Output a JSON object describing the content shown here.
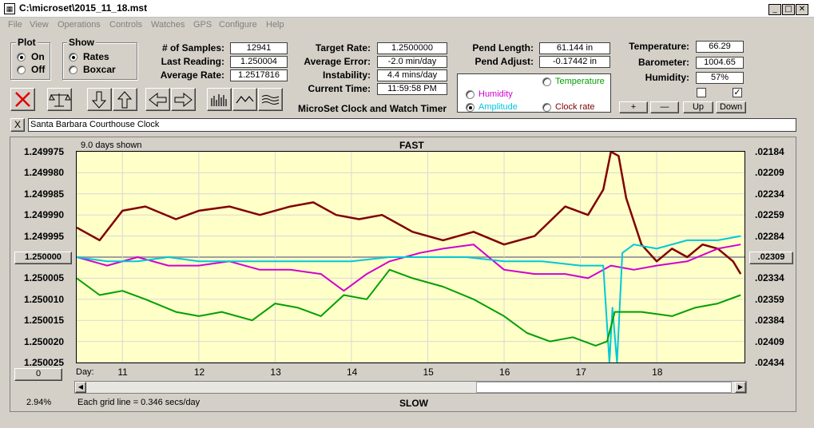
{
  "window": {
    "title": "C:\\microset\\2015_11_18.mst"
  },
  "menu": [
    "File",
    "View",
    "Operations",
    "Controls",
    "Watches",
    "GPS",
    "Configure",
    "Help"
  ],
  "plot_group": {
    "title": "Plot",
    "on": "On",
    "off": "Off",
    "selected": "On"
  },
  "show_group": {
    "title": "Show",
    "rates": "Rates",
    "boxcar": "Boxcar",
    "selected": "Rates"
  },
  "stats": {
    "samples_label": "# of Samples:",
    "samples_value": "12941",
    "last_label": "Last Reading:",
    "last_value": "1.250004",
    "avg_label": "Average Rate:",
    "avg_value": "1.2517816"
  },
  "rates": {
    "target_label": "Target Rate:",
    "target_value": "1.2500000",
    "error_label": "Average Error:",
    "error_value": "-2.0 min/day",
    "instab_label": "Instability:",
    "instab_value": "4.4 mins/day",
    "time_label": "Current Time:",
    "time_value": "11:59:58 PM"
  },
  "app_name": "MicroSet Clock and Watch Timer",
  "pendulum": {
    "length_label": "Pend Length:",
    "length_value": "61.144 in",
    "adjust_label": "Pend Adjust:",
    "adjust_value": "-0.17442 in"
  },
  "overlay": {
    "temperature": "Temperature",
    "humidity": "Humidity",
    "amplitude": "Amplitude",
    "clock_rate": "Clock rate",
    "selected": "Amplitude",
    "colors": {
      "temperature": "#00a000",
      "humidity": "#d000d0",
      "amplitude": "#00c8d8",
      "rate": "#800000"
    }
  },
  "environment": {
    "temp_label": "Temperature:",
    "temp_value": "66.29",
    "baro_label": "Barometer:",
    "baro_value": "1004.65",
    "hum_label": "Humidity:",
    "hum_value": "57%",
    "check1": false,
    "check2": true
  },
  "adjust_buttons": {
    "plus": "+",
    "minus": "—",
    "up": "Up",
    "down": "Down"
  },
  "toolbar_icons": [
    "stop-icon",
    "balance-icon",
    "arrow-down-icon",
    "arrow-up-icon",
    "arrow-left-icon",
    "arrow-right-icon",
    "bars-icon",
    "wave-icon",
    "lines-icon"
  ],
  "clock_name_close": "X",
  "clock_name": "Santa Barbara Courthouse Clock",
  "chart": {
    "days_shown": "9.0 days shown",
    "top_label": "FAST",
    "bottom_label": "SLOW",
    "day_label": "Day:",
    "left_center_button": "1.250000",
    "right_center_button": ".02309",
    "zero_button": "0",
    "percent": "2.94%",
    "grid_note": "Each grid line = 0.346 secs/day"
  },
  "chart_data": {
    "type": "line",
    "x_range": [
      10.4,
      19.15
    ],
    "x_ticks": [
      11,
      12,
      13,
      14,
      15,
      16,
      17,
      18
    ],
    "y_left_ticks": [
      "1.249975",
      "1.249980",
      "1.249985",
      "1.249990",
      "1.249995",
      "1.250000",
      "1.250005",
      "1.250010",
      "1.250015",
      "1.250020",
      "1.250025"
    ],
    "y_left_range": [
      1.250025,
      1.249975
    ],
    "y_right_ticks": [
      ".02184",
      ".02209",
      ".02234",
      ".02259",
      ".02284",
      ".02309",
      ".02334",
      ".02359",
      ".02384",
      ".02409",
      ".02434"
    ],
    "series": [
      {
        "key": "rate",
        "color": "#800000",
        "x": [
          10.4,
          10.7,
          11.0,
          11.3,
          11.7,
          12.0,
          12.4,
          12.8,
          13.2,
          13.5,
          13.8,
          14.1,
          14.4,
          14.8,
          15.2,
          15.6,
          16.0,
          16.4,
          16.8,
          17.1,
          17.3,
          17.4,
          17.5,
          17.6,
          17.8,
          18.0,
          18.2,
          18.4,
          18.6,
          18.8,
          19.0,
          19.1
        ],
        "y": [
          1.249993,
          1.249996,
          1.249989,
          1.249988,
          1.249991,
          1.249989,
          1.249988,
          1.24999,
          1.249988,
          1.249987,
          1.24999,
          1.249991,
          1.24999,
          1.249994,
          1.249996,
          1.249994,
          1.249997,
          1.249995,
          1.249988,
          1.24999,
          1.249984,
          1.249975,
          1.249976,
          1.249986,
          1.249997,
          1.250001,
          1.249998,
          1.25,
          1.249997,
          1.249998,
          1.250001,
          1.250004
        ]
      },
      {
        "key": "humidity",
        "color": "#d000d0",
        "x": [
          10.4,
          10.8,
          11.2,
          11.6,
          12.0,
          12.4,
          12.8,
          13.2,
          13.6,
          13.9,
          14.2,
          14.5,
          14.9,
          15.2,
          15.6,
          16.0,
          16.4,
          16.8,
          17.1,
          17.4,
          17.7,
          18.0,
          18.4,
          18.8,
          19.1
        ],
        "y": [
          1.25,
          1.250002,
          1.25,
          1.250002,
          1.250002,
          1.250001,
          1.250003,
          1.250003,
          1.250004,
          1.250008,
          1.250004,
          1.250001,
          1.249999,
          1.249998,
          1.249997,
          1.250003,
          1.250004,
          1.250004,
          1.250005,
          1.250002,
          1.250003,
          1.250002,
          1.250001,
          1.249998,
          1.249997
        ]
      },
      {
        "key": "amplitude",
        "color": "#00c8d8",
        "x": [
          10.4,
          10.8,
          11.2,
          11.6,
          12.0,
          12.5,
          13.0,
          13.5,
          14.0,
          14.5,
          15.0,
          15.5,
          16.0,
          16.5,
          17.0,
          17.3,
          17.38,
          17.42,
          17.48,
          17.55,
          17.7,
          18.0,
          18.4,
          18.8,
          19.1
        ],
        "y": [
          1.25,
          1.250001,
          1.250001,
          1.25,
          1.250001,
          1.250001,
          1.250001,
          1.250001,
          1.250001,
          1.25,
          1.25,
          1.25,
          1.250001,
          1.250001,
          1.250002,
          1.250002,
          1.250025,
          1.250012,
          1.250025,
          1.249999,
          1.249997,
          1.249998,
          1.249996,
          1.249996,
          1.249995
        ]
      },
      {
        "key": "temperature",
        "color": "#00a000",
        "x": [
          10.4,
          10.7,
          11.0,
          11.3,
          11.7,
          12.0,
          12.3,
          12.7,
          13.0,
          13.3,
          13.6,
          13.9,
          14.2,
          14.5,
          14.8,
          15.2,
          15.6,
          16.0,
          16.3,
          16.6,
          16.9,
          17.2,
          17.35,
          17.45,
          17.8,
          18.2,
          18.5,
          18.8,
          19.1
        ],
        "y": [
          1.250005,
          1.250009,
          1.250008,
          1.25001,
          1.250013,
          1.250014,
          1.250013,
          1.250015,
          1.250011,
          1.250012,
          1.250014,
          1.250009,
          1.25001,
          1.250003,
          1.250005,
          1.250007,
          1.25001,
          1.250014,
          1.250018,
          1.25002,
          1.250019,
          1.250021,
          1.25002,
          1.250013,
          1.250013,
          1.250014,
          1.250012,
          1.250011,
          1.250009
        ]
      }
    ]
  }
}
